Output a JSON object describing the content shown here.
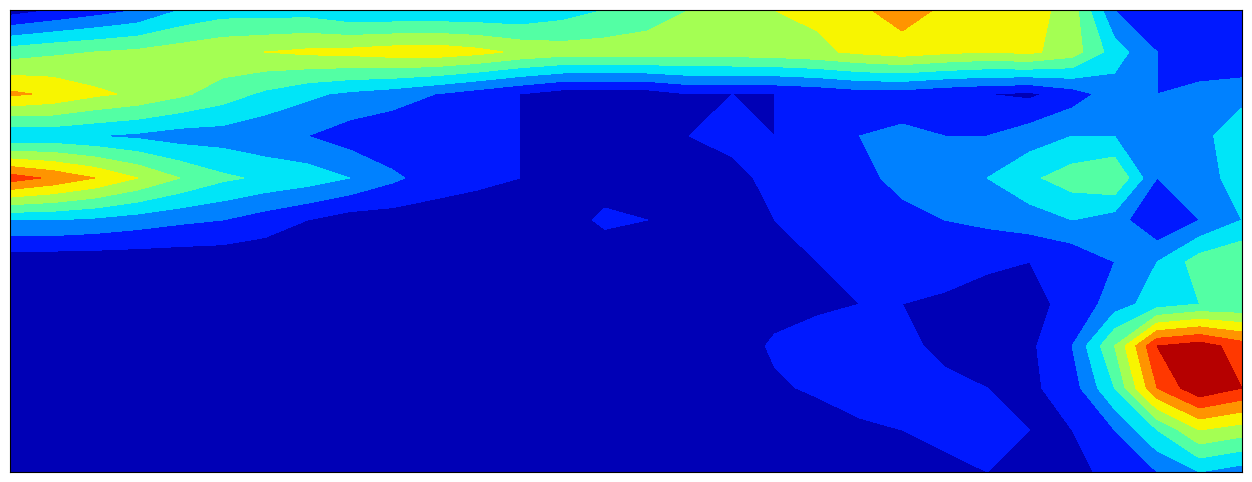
{
  "chart_data": {
    "type": "contour",
    "tick_labels": false,
    "color": "jet",
    "levels": [
      0.0,
      0.1,
      0.2,
      0.3,
      0.4,
      0.5,
      0.6,
      0.7,
      0.8,
      0.9,
      1.0
    ],
    "cells": [
      [
        0.05,
        0.1,
        0.15,
        0.2,
        0.3,
        0.35,
        0.35,
        0.35,
        0.3,
        0.3,
        0.3,
        0.3,
        0.3,
        0.35,
        0.4,
        0.45,
        0.5,
        0.55,
        0.6,
        0.62,
        0.68,
        0.75,
        0.68,
        0.62,
        0.65,
        0.55,
        0.2,
        0.1,
        0.1,
        0.1
      ],
      [
        0.45,
        0.48,
        0.5,
        0.52,
        0.55,
        0.58,
        0.6,
        0.62,
        0.63,
        0.65,
        0.66,
        0.63,
        0.58,
        0.55,
        0.55,
        0.55,
        0.55,
        0.55,
        0.56,
        0.58,
        0.62,
        0.65,
        0.62,
        0.6,
        0.62,
        0.55,
        0.35,
        0.2,
        0.15,
        0.12
      ],
      [
        0.72,
        0.68,
        0.62,
        0.58,
        0.52,
        0.45,
        0.38,
        0.32,
        0.28,
        0.25,
        0.2,
        0.15,
        0.1,
        0.05,
        0.05,
        0.05,
        0.1,
        0.1,
        0.1,
        0.12,
        0.15,
        0.15,
        0.12,
        0.1,
        0.08,
        0.15,
        0.25,
        0.2,
        0.22,
        0.25
      ],
      [
        0.3,
        0.32,
        0.3,
        0.28,
        0.25,
        0.25,
        0.22,
        0.2,
        0.15,
        0.12,
        0.1,
        0.12,
        0.1,
        0.05,
        0.05,
        0.05,
        0.1,
        0.12,
        0.1,
        0.15,
        0.2,
        0.22,
        0.2,
        0.2,
        0.25,
        0.3,
        0.3,
        0.2,
        0.25,
        0.4
      ],
      [
        0.85,
        0.78,
        0.7,
        0.6,
        0.5,
        0.42,
        0.38,
        0.35,
        0.3,
        0.22,
        0.15,
        0.12,
        0.1,
        0.05,
        0.05,
        0.05,
        0.05,
        0.08,
        0.12,
        0.15,
        0.18,
        0.22,
        0.25,
        0.3,
        0.38,
        0.45,
        0.5,
        0.2,
        0.25,
        0.35
      ],
      [
        0.3,
        0.3,
        0.28,
        0.25,
        0.22,
        0.2,
        0.15,
        0.1,
        0.05,
        0.05,
        0.05,
        0.05,
        0.05,
        0.05,
        0.12,
        0.1,
        0.05,
        0.08,
        0.1,
        0.12,
        0.15,
        0.18,
        0.2,
        0.22,
        0.25,
        0.3,
        0.25,
        0.1,
        0.2,
        0.3
      ],
      [
        0.03,
        0.03,
        0.03,
        0.03,
        0.03,
        0.03,
        0.03,
        0.03,
        0.03,
        0.03,
        0.03,
        0.03,
        0.03,
        0.03,
        0.03,
        0.05,
        0.08,
        0.1,
        0.08,
        0.1,
        0.12,
        0.15,
        0.15,
        0.12,
        0.1,
        0.12,
        0.2,
        0.3,
        0.45,
        0.5
      ],
      [
        0.03,
        0.03,
        0.03,
        0.03,
        0.03,
        0.03,
        0.03,
        0.03,
        0.03,
        0.03,
        0.03,
        0.03,
        0.03,
        0.03,
        0.05,
        0.1,
        0.08,
        0.05,
        0.05,
        0.08,
        0.1,
        0.1,
        0.08,
        0.05,
        0.08,
        0.12,
        0.25,
        0.35,
        0.4,
        0.4
      ],
      [
        0.03,
        0.03,
        0.03,
        0.03,
        0.03,
        0.03,
        0.03,
        0.03,
        0.03,
        0.03,
        0.03,
        0.03,
        0.03,
        0.03,
        0.03,
        0.03,
        0.03,
        0.03,
        0.12,
        0.15,
        0.15,
        0.12,
        0.08,
        0.05,
        0.08,
        0.2,
        0.5,
        0.9,
        0.95,
        0.85
      ],
      [
        0.03,
        0.03,
        0.03,
        0.03,
        0.03,
        0.03,
        0.03,
        0.03,
        0.03,
        0.03,
        0.08,
        0.05,
        0.03,
        0.03,
        0.03,
        0.03,
        0.03,
        0.03,
        0.08,
        0.12,
        0.15,
        0.15,
        0.12,
        0.1,
        0.08,
        0.15,
        0.4,
        0.8,
        0.98,
        0.9
      ],
      [
        0.03,
        0.03,
        0.03,
        0.03,
        0.03,
        0.03,
        0.03,
        0.03,
        0.03,
        0.03,
        0.03,
        0.03,
        0.03,
        0.03,
        0.03,
        0.03,
        0.03,
        0.03,
        0.03,
        0.03,
        0.08,
        0.1,
        0.12,
        0.12,
        0.1,
        0.1,
        0.2,
        0.4,
        0.6,
        0.55
      ],
      [
        0.03,
        0.03,
        0.03,
        0.03,
        0.03,
        0.03,
        0.03,
        0.03,
        0.03,
        0.03,
        0.03,
        0.03,
        0.03,
        0.03,
        0.03,
        0.03,
        0.03,
        0.03,
        0.03,
        0.03,
        0.03,
        0.05,
        0.08,
        0.1,
        0.1,
        0.08,
        0.12,
        0.2,
        0.3,
        0.25
      ]
    ]
  }
}
